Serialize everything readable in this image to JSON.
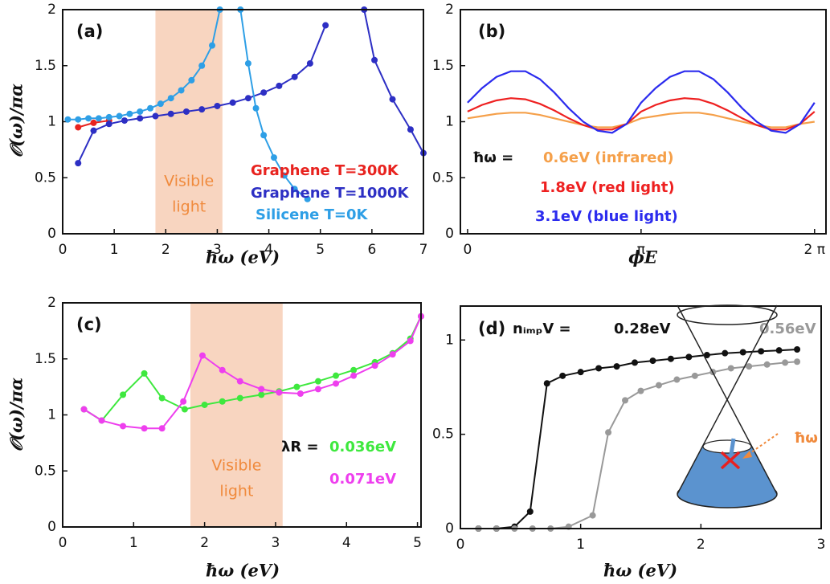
{
  "chart_data": [
    {
      "type": "line",
      "label": "(a)",
      "xlabel": "ħω (eV)",
      "ylabel": "𝒪(ω)/πα",
      "xlim": [
        0,
        7
      ],
      "ylim": [
        0,
        2
      ],
      "xticks": [
        0,
        1,
        2,
        3,
        4,
        5,
        6,
        7
      ],
      "yticks": [
        0,
        0.5,
        1,
        1.5,
        2
      ],
      "markers": true,
      "shade": {
        "xlim": [
          1.8,
          3.1
        ],
        "color": "#f8d5c0",
        "label": [
          "Visible",
          "light"
        ]
      },
      "series": [
        {
          "name": "Graphene T=300K",
          "color": "#e8231f",
          "x": [
            0.3,
            0.6,
            0.9
          ],
          "values": [
            0.95,
            0.99,
            1.01
          ]
        },
        {
          "name": "Graphene T=1000K",
          "color": "#2d2fc4",
          "x": [
            0.3,
            0.6,
            0.9,
            1.2,
            1.5,
            1.8,
            2.1,
            2.4,
            2.7,
            3.0,
            3.3,
            3.6,
            3.9,
            4.2,
            4.5,
            4.8,
            5.1,
            null,
            5.85,
            6.05,
            6.4,
            6.75,
            7.0
          ],
          "values": [
            0.63,
            0.92,
            0.98,
            1.01,
            1.03,
            1.05,
            1.07,
            1.09,
            1.11,
            1.14,
            1.17,
            1.21,
            1.26,
            1.32,
            1.4,
            1.52,
            1.86,
            null,
            2.0,
            1.55,
            1.2,
            0.93,
            0.72
          ]
        },
        {
          "name": "Silicene T=0K",
          "color": "#2e9fe6",
          "x": [
            0.1,
            0.3,
            0.5,
            0.7,
            0.9,
            1.1,
            1.3,
            1.5,
            1.7,
            1.9,
            2.1,
            2.3,
            2.5,
            2.7,
            2.9,
            3.05,
            null,
            3.45,
            3.6,
            3.75,
            3.9,
            4.1,
            4.3,
            4.5,
            4.75
          ],
          "values": [
            1.02,
            1.02,
            1.03,
            1.03,
            1.04,
            1.05,
            1.07,
            1.09,
            1.12,
            1.16,
            1.21,
            1.28,
            1.37,
            1.5,
            1.68,
            2.0,
            null,
            2.0,
            1.52,
            1.12,
            0.88,
            0.68,
            0.52,
            0.4,
            0.31
          ]
        }
      ]
    },
    {
      "type": "line",
      "label": "(b)",
      "xlabel": "ϕE",
      "xlim": [
        -0.13,
        6.49
      ],
      "ylim": [
        0,
        2
      ],
      "xticks": [
        0,
        {
          "value": 3.1416,
          "label": "π"
        },
        {
          "value": 6.2832,
          "label": "2 π"
        }
      ],
      "yticks": [
        0,
        0.5,
        1,
        1.5,
        2
      ],
      "markers": false,
      "legend_prefix": "ħω = ",
      "series": [
        {
          "name": "0.6eV (infrared)",
          "color": "#f5a04a",
          "x": [
            0,
            0.2618,
            0.5236,
            0.7854,
            1.0472,
            1.309,
            1.5708,
            1.8326,
            2.0944,
            2.3562,
            2.618,
            2.8798,
            3.1416,
            3.4034,
            3.6652,
            3.927,
            4.1888,
            4.4506,
            4.7124,
            4.9742,
            5.236,
            5.4978,
            5.7596,
            6.0214,
            6.2832
          ],
          "values": [
            1.03,
            1.05,
            1.07,
            1.08,
            1.08,
            1.06,
            1.03,
            1.0,
            0.97,
            0.95,
            0.95,
            0.98,
            1.03,
            1.05,
            1.07,
            1.08,
            1.08,
            1.06,
            1.03,
            1.0,
            0.97,
            0.95,
            0.95,
            0.98,
            1.0
          ]
        },
        {
          "name": "1.8eV (red light)",
          "color": "#ee2020",
          "x": [
            0,
            0.2618,
            0.5236,
            0.7854,
            1.0472,
            1.309,
            1.5708,
            1.8326,
            2.0944,
            2.3562,
            2.618,
            2.8798,
            3.1416,
            3.4034,
            3.6652,
            3.927,
            4.1888,
            4.4506,
            4.7124,
            4.9742,
            5.236,
            5.4978,
            5.7596,
            6.0214,
            6.2832
          ],
          "values": [
            1.09,
            1.15,
            1.19,
            1.21,
            1.2,
            1.16,
            1.1,
            1.03,
            0.97,
            0.93,
            0.93,
            0.98,
            1.09,
            1.15,
            1.19,
            1.21,
            1.2,
            1.16,
            1.1,
            1.03,
            0.97,
            0.93,
            0.93,
            0.98,
            1.09
          ]
        },
        {
          "name": "3.1eV (blue light)",
          "color": "#2b2bee",
          "x": [
            0,
            0.2618,
            0.5236,
            0.7854,
            1.0472,
            1.309,
            1.5708,
            1.8326,
            2.0944,
            2.3562,
            2.618,
            2.8798,
            3.1416,
            3.4034,
            3.6652,
            3.927,
            4.1888,
            4.4506,
            4.7124,
            4.9742,
            5.236,
            5.4978,
            5.7596,
            6.0214,
            6.2832
          ],
          "values": [
            1.17,
            1.3,
            1.4,
            1.45,
            1.45,
            1.38,
            1.26,
            1.12,
            1.0,
            0.92,
            0.9,
            0.98,
            1.17,
            1.3,
            1.4,
            1.45,
            1.45,
            1.38,
            1.26,
            1.12,
            1.0,
            0.92,
            0.9,
            0.98,
            1.17
          ]
        }
      ]
    },
    {
      "type": "line",
      "label": "(c)",
      "xlabel": "ħω (eV)",
      "ylabel": "𝒪(ω)/πα",
      "xlim": [
        0,
        5.05
      ],
      "ylim": [
        0,
        2
      ],
      "xticks": [
        0,
        1,
        2,
        3,
        4,
        5
      ],
      "yticks": [
        0,
        0.5,
        1,
        1.5,
        2
      ],
      "markers": true,
      "shade": {
        "xlim": [
          1.8,
          3.1
        ],
        "color": "#f8d5c0",
        "label": [
          "Visible",
          "light"
        ]
      },
      "legend_prefix": "λR = ",
      "series": [
        {
          "name": "0.036eV",
          "color": "#3ee83e",
          "x": [
            0.3,
            0.55,
            0.85,
            1.15,
            1.4,
            1.72,
            2.0,
            2.25,
            2.5,
            2.8,
            3.05,
            3.3,
            3.6,
            3.85,
            4.1,
            4.4,
            4.65,
            4.9,
            5.05
          ],
          "values": [
            1.05,
            0.95,
            1.18,
            1.37,
            1.15,
            1.05,
            1.09,
            1.12,
            1.15,
            1.18,
            1.21,
            1.25,
            1.3,
            1.35,
            1.4,
            1.47,
            1.55,
            1.68,
            1.88
          ]
        },
        {
          "name": "0.071eV",
          "color": "#ee3fee",
          "x": [
            0.3,
            0.55,
            0.85,
            1.15,
            1.4,
            1.7,
            1.97,
            2.25,
            2.5,
            2.8,
            3.05,
            3.35,
            3.6,
            3.85,
            4.1,
            4.4,
            4.65,
            4.9,
            5.05
          ],
          "values": [
            1.05,
            0.95,
            0.9,
            0.88,
            0.88,
            1.12,
            1.53,
            1.4,
            1.3,
            1.23,
            1.2,
            1.19,
            1.23,
            1.28,
            1.35,
            1.44,
            1.54,
            1.66,
            1.88
          ]
        }
      ]
    },
    {
      "type": "line",
      "label": "(d)",
      "xlabel": "ħω (eV)",
      "xlim": [
        0,
        3
      ],
      "ylim": [
        0,
        1.18
      ],
      "xticks": [
        0,
        1,
        2,
        3
      ],
      "yticks": [
        0,
        0.5,
        1
      ],
      "markers": true,
      "legend_prefix": "nᵢₘₚV = ",
      "inset_label": "ħω",
      "series": [
        {
          "name": "0.28eV",
          "color": "#111111",
          "x": [
            0.15,
            0.3,
            0.45,
            0.58,
            0.72,
            0.85,
            1.0,
            1.15,
            1.3,
            1.45,
            1.6,
            1.75,
            1.9,
            2.05,
            2.2,
            2.35,
            2.5,
            2.65,
            2.8
          ],
          "values": [
            0,
            0,
            0.01,
            0.09,
            0.77,
            0.81,
            0.83,
            0.85,
            0.86,
            0.88,
            0.89,
            0.9,
            0.91,
            0.92,
            0.93,
            0.935,
            0.94,
            0.945,
            0.95
          ]
        },
        {
          "name": "0.56eV",
          "color": "#999999",
          "x": [
            0.15,
            0.3,
            0.45,
            0.6,
            0.75,
            0.9,
            1.1,
            1.23,
            1.37,
            1.5,
            1.65,
            1.8,
            1.95,
            2.1,
            2.25,
            2.4,
            2.55,
            2.7,
            2.8
          ],
          "values": [
            0,
            0,
            0,
            0,
            0,
            0.01,
            0.07,
            0.51,
            0.68,
            0.73,
            0.76,
            0.79,
            0.81,
            0.83,
            0.85,
            0.86,
            0.87,
            0.88,
            0.885
          ]
        }
      ]
    }
  ]
}
